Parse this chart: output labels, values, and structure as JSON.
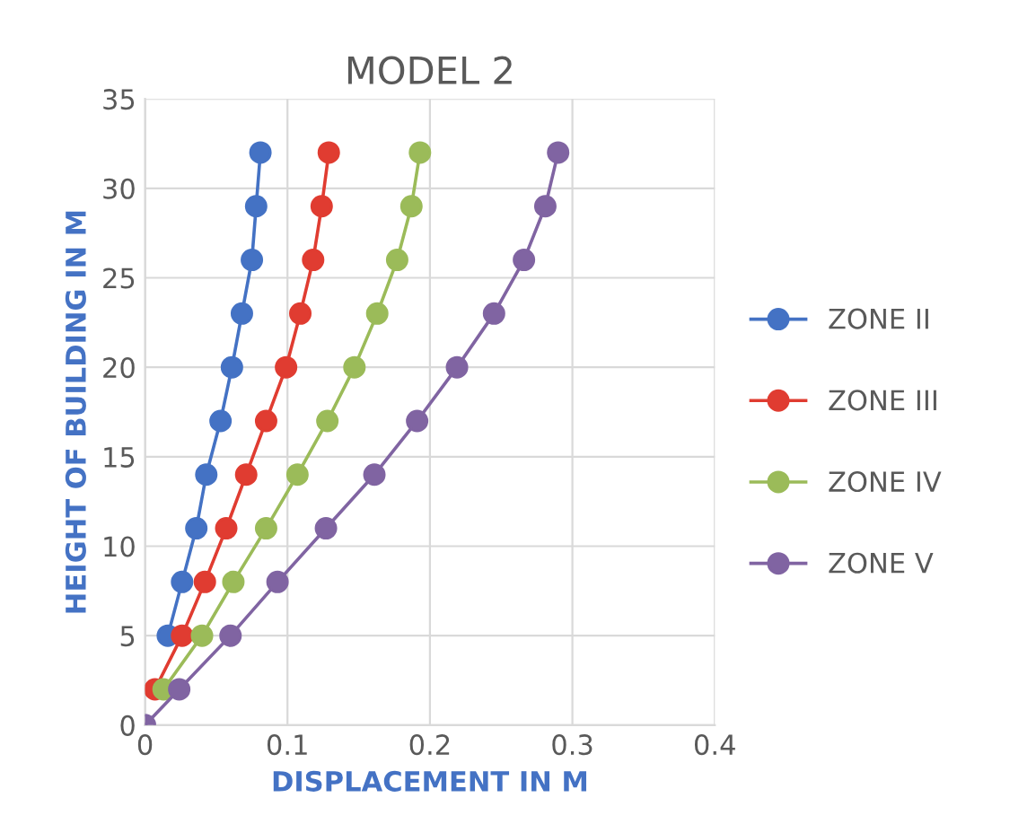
{
  "chart_data": {
    "type": "line",
    "title": "MODEL 2",
    "xlabel": "DISPLACEMENT IN M",
    "ylabel": "HEIGHT OF BUILDING IN M",
    "xlim": [
      0,
      0.4
    ],
    "xticks": [
      0,
      0.1,
      0.2,
      0.3,
      0.4
    ],
    "ylim": [
      0,
      35
    ],
    "yticks": [
      0,
      5,
      10,
      15,
      20,
      25,
      30,
      35
    ],
    "grid": true,
    "legend": "right",
    "marker": "circle",
    "line_style": "solid",
    "series": [
      {
        "name": "ZONE II",
        "color": "#4472c4",
        "x": [
          null,
          0.016,
          0.026,
          0.036,
          0.043,
          0.053,
          0.061,
          0.068,
          0.075,
          0.078,
          0.081
        ],
        "values": [
          null,
          5,
          8,
          11,
          14,
          17,
          20,
          23,
          26,
          29,
          32
        ]
      },
      {
        "name": "ZONE III",
        "color": "#e03c31",
        "x": [
          0.007,
          0.026,
          0.042,
          0.057,
          0.071,
          0.085,
          0.099,
          0.109,
          0.118,
          0.124,
          0.129
        ],
        "values": [
          2,
          5,
          8,
          11,
          14,
          17,
          20,
          23,
          26,
          29,
          32
        ]
      },
      {
        "name": "ZONE IV",
        "color": "#9bbb59",
        "x": [
          0.013,
          0.04,
          0.062,
          0.085,
          0.107,
          0.128,
          0.147,
          0.163,
          0.177,
          0.187,
          0.193
        ],
        "values": [
          2,
          5,
          8,
          11,
          14,
          17,
          20,
          23,
          26,
          29,
          32
        ]
      },
      {
        "name": "ZONE V",
        "color": "#8064a2",
        "x": [
          0,
          0.024,
          0.06,
          0.093,
          0.127,
          0.161,
          0.191,
          0.219,
          0.245,
          0.266,
          0.281,
          0.29
        ],
        "values": [
          0,
          2,
          5,
          8,
          11,
          14,
          17,
          20,
          23,
          26,
          29,
          32
        ]
      }
    ]
  }
}
